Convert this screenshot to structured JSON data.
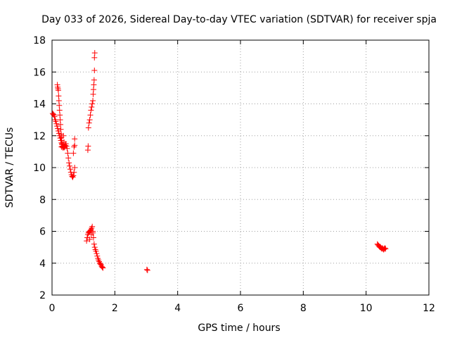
{
  "chart_data": {
    "type": "scatter",
    "title": "Day 033 of 2026, Sidereal Day-to-day VTEC variation (SDTVAR) for receiver spja",
    "xlabel": "GPS time / hours",
    "ylabel": "SDTVAR / TECUs",
    "xlim": [
      0,
      12
    ],
    "ylim": [
      2,
      18
    ],
    "xticks": [
      "0",
      "2",
      "4",
      "6",
      "8",
      "10",
      "12"
    ],
    "yticks": [
      "2",
      "4",
      "6",
      "8",
      "10",
      "12",
      "14",
      "16",
      "18"
    ],
    "grid": true,
    "marker": "+",
    "color": "#ff0000",
    "series": [
      {
        "name": "SDTVAR",
        "points": [
          [
            0.02,
            13.4
          ],
          [
            0.04,
            13.35
          ],
          [
            0.06,
            13.3
          ],
          [
            0.08,
            13.2
          ],
          [
            0.1,
            13.0
          ],
          [
            0.12,
            12.9
          ],
          [
            0.14,
            12.75
          ],
          [
            0.16,
            12.6
          ],
          [
            0.18,
            12.45
          ],
          [
            0.2,
            12.3
          ],
          [
            0.22,
            12.15
          ],
          [
            0.24,
            12.0
          ],
          [
            0.26,
            11.85
          ],
          [
            0.28,
            11.7
          ],
          [
            0.3,
            11.55
          ],
          [
            0.32,
            11.45
          ],
          [
            0.34,
            11.35
          ],
          [
            0.36,
            11.3
          ],
          [
            0.38,
            11.25
          ],
          [
            0.4,
            11.3
          ],
          [
            0.42,
            11.4
          ],
          [
            0.44,
            11.5
          ],
          [
            0.46,
            11.35
          ],
          [
            0.48,
            11.2
          ],
          [
            0.5,
            10.9
          ],
          [
            0.52,
            10.6
          ],
          [
            0.54,
            10.3
          ],
          [
            0.56,
            10.1
          ],
          [
            0.58,
            9.9
          ],
          [
            0.6,
            9.7
          ],
          [
            0.62,
            9.55
          ],
          [
            0.64,
            9.45
          ],
          [
            0.66,
            9.4
          ],
          [
            0.68,
            9.5
          ],
          [
            0.7,
            9.7
          ],
          [
            0.72,
            10.0
          ],
          [
            0.68,
            10.9
          ],
          [
            0.7,
            11.3
          ],
          [
            0.72,
            11.4
          ],
          [
            0.72,
            11.8
          ],
          [
            0.17,
            15.2
          ],
          [
            0.18,
            15.05
          ],
          [
            0.19,
            14.95
          ],
          [
            0.2,
            14.85
          ],
          [
            0.21,
            14.5
          ],
          [
            0.22,
            14.2
          ],
          [
            0.23,
            13.9
          ],
          [
            0.24,
            13.6
          ],
          [
            0.25,
            13.3
          ],
          [
            0.26,
            13.0
          ],
          [
            0.27,
            12.7
          ],
          [
            0.28,
            12.4
          ],
          [
            0.29,
            12.1
          ],
          [
            0.3,
            11.9
          ],
          [
            0.31,
            11.7
          ],
          [
            0.32,
            11.5
          ],
          [
            0.33,
            11.35
          ],
          [
            0.34,
            11.25
          ],
          [
            0.3,
            11.3
          ],
          [
            0.36,
            12.0
          ],
          [
            0.38,
            11.6
          ],
          [
            0.4,
            11.3
          ],
          [
            1.14,
            11.1
          ],
          [
            1.15,
            11.35
          ],
          [
            1.16,
            12.5
          ],
          [
            1.18,
            12.8
          ],
          [
            1.2,
            13.0
          ],
          [
            1.22,
            13.3
          ],
          [
            1.24,
            13.6
          ],
          [
            1.26,
            13.8
          ],
          [
            1.28,
            14.0
          ],
          [
            1.3,
            14.2
          ],
          [
            1.31,
            14.6
          ],
          [
            1.32,
            14.9
          ],
          [
            1.33,
            15.2
          ],
          [
            1.34,
            15.5
          ],
          [
            1.35,
            16.1
          ],
          [
            1.35,
            16.9
          ],
          [
            1.36,
            17.2
          ],
          [
            1.1,
            5.4
          ],
          [
            1.12,
            5.6
          ],
          [
            1.14,
            5.8
          ],
          [
            1.16,
            5.9
          ],
          [
            1.18,
            5.95
          ],
          [
            1.2,
            6.0
          ],
          [
            1.22,
            6.05
          ],
          [
            1.24,
            6.1
          ],
          [
            1.26,
            6.2
          ],
          [
            1.28,
            6.3
          ],
          [
            1.3,
            6.0
          ],
          [
            1.32,
            5.6
          ],
          [
            1.34,
            5.2
          ],
          [
            1.36,
            5.0
          ],
          [
            1.38,
            4.85
          ],
          [
            1.4,
            4.75
          ],
          [
            1.42,
            4.6
          ],
          [
            1.44,
            4.45
          ],
          [
            1.46,
            4.3
          ],
          [
            1.48,
            4.2
          ],
          [
            1.5,
            4.1
          ],
          [
            1.52,
            4.0
          ],
          [
            1.54,
            3.95
          ],
          [
            1.56,
            3.9
          ],
          [
            1.58,
            3.8
          ],
          [
            1.6,
            3.75
          ],
          [
            1.62,
            3.7
          ],
          [
            1.2,
            5.5
          ],
          [
            1.25,
            5.8
          ],
          [
            1.3,
            5.9
          ],
          [
            3.02,
            3.6
          ],
          [
            3.04,
            3.55
          ],
          [
            10.36,
            5.2
          ],
          [
            10.38,
            5.15
          ],
          [
            10.4,
            5.1
          ],
          [
            10.42,
            5.05
          ],
          [
            10.44,
            5.0
          ],
          [
            10.46,
            5.0
          ],
          [
            10.48,
            4.95
          ],
          [
            10.5,
            4.9
          ],
          [
            10.52,
            4.95
          ],
          [
            10.54,
            4.9
          ],
          [
            10.56,
            4.85
          ],
          [
            10.58,
            4.9
          ],
          [
            10.6,
            4.95
          ],
          [
            10.62,
            4.9
          ]
        ]
      }
    ]
  }
}
